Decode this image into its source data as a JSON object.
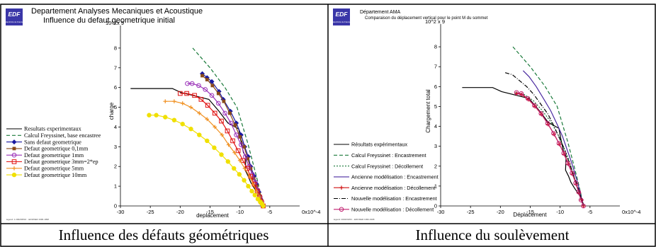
{
  "captions": [
    "Influence des défauts géométriques",
    "Influence du soulèvement"
  ],
  "chart_data": [
    {
      "type": "line",
      "logo": "EDF",
      "logo_sub": "Electricité de France",
      "header": "Departement Analyses Mecaniques et Acoustique",
      "title": "Influence du defaut geometrique initial",
      "xlabel": "deplacement",
      "ylabel": "charge",
      "x_scale_label": "0x10^-4",
      "y_scale_label": "10^2x 9",
      "xlim": [
        -30,
        0
      ],
      "ylim": [
        0,
        9
      ],
      "x_ticks": [
        -30,
        -25,
        -20,
        -15,
        -10,
        -5
      ],
      "y_ticks": [
        0,
        1,
        2,
        3,
        4,
        5,
        6,
        7,
        8
      ],
      "footer": "legend: 1 2002/08/16 ...EDF/DER 1996-1998",
      "series": [
        {
          "name": "Resultats experimentaux",
          "color": "#000000",
          "dash": "",
          "marker": "none",
          "x": [
            -28.3,
            -26.4,
            -21.3,
            -19.9,
            -15.2,
            -13.5,
            -12,
            -10.2,
            -9.9,
            -9.4,
            -9,
            -9.1,
            -8.6,
            -8.2,
            -7.6,
            -6.8,
            -6.3,
            -6
          ],
          "y": [
            5.95,
            5.95,
            5.95,
            5.75,
            5.4,
            4.8,
            4.2,
            3.9,
            3.4,
            2.7,
            2.5,
            1.8,
            1.5,
            1.2,
            0.9,
            0.55,
            0.25,
            0
          ]
        },
        {
          "name": "Calcul Freyssinet, base encastree",
          "color": "#1a7a3a",
          "dash": "5,3",
          "marker": "none",
          "x": [
            -17.9,
            -15,
            -12.5,
            -10.5,
            -9.5,
            -8.7,
            -8.1,
            -7.5,
            -7,
            -6.6,
            -6.3,
            -6.1
          ],
          "y": [
            8,
            7,
            6,
            5,
            4,
            3.2,
            2.5,
            1.8,
            1.2,
            0.7,
            0.3,
            0
          ]
        },
        {
          "name": "Sans defaut geometrique",
          "color": "#1a1aa0",
          "dash": "",
          "marker": "diamond",
          "x": [
            -16.3,
            -15.5,
            -14.7,
            -13.5,
            -12.8,
            -11.6,
            -10.6,
            -9.8,
            -9.2,
            -8.6,
            -8.2,
            -7.6,
            -7.2,
            -6.8,
            -6.5,
            -6.2
          ],
          "y": [
            6.7,
            6.5,
            6.3,
            5.8,
            5.4,
            4.8,
            4.2,
            3.6,
            3.0,
            2.5,
            2.0,
            1.5,
            1.1,
            0.7,
            0.35,
            0
          ]
        },
        {
          "name": "Defaut geometrique 0,1mm",
          "color": "#8a4a1a",
          "dash": "",
          "marker": "square",
          "x": [
            -16.3,
            -15.5,
            -14.6,
            -13.6,
            -12.7,
            -11.7,
            -10.8,
            -10,
            -9.3,
            -8.7,
            -8.2,
            -7.7,
            -7.2,
            -6.8,
            -6.5,
            -6.2
          ],
          "y": [
            6.6,
            6.4,
            6.1,
            5.7,
            5.3,
            4.7,
            4.1,
            3.5,
            3.0,
            2.4,
            1.9,
            1.4,
            1.0,
            0.6,
            0.3,
            0
          ]
        },
        {
          "name": "Defaut geometrique 1mm",
          "color": "#9a30b8",
          "dash": "",
          "marker": "circle",
          "x": [
            -18.8,
            -18,
            -16.9,
            -15.8,
            -14.7,
            -13.6,
            -12.5,
            -11.5,
            -10.6,
            -9.8,
            -9.1,
            -8.5,
            -7.9,
            -7.4,
            -7,
            -6.6,
            -6.3,
            -6.1
          ],
          "y": [
            6.2,
            6.2,
            6.1,
            5.9,
            5.6,
            5.2,
            4.7,
            4.2,
            3.6,
            3.1,
            2.5,
            2.0,
            1.6,
            1.2,
            0.8,
            0.45,
            0.2,
            0
          ]
        },
        {
          "name": "Defaut geometrique 3mm=2*ep",
          "color": "#e01010",
          "dash": "",
          "marker": "square-open",
          "x": [
            -20,
            -18.9,
            -17.6,
            -16.5,
            -15.4,
            -14.2,
            -13.1,
            -12.1,
            -11.2,
            -10.3,
            -9.5,
            -8.8,
            -8.2,
            -7.6,
            -7.1,
            -6.7,
            -6.4,
            -6.1
          ],
          "y": [
            5.7,
            5.7,
            5.6,
            5.4,
            5.1,
            4.7,
            4.3,
            3.8,
            3.3,
            2.8,
            2.3,
            1.9,
            1.5,
            1.1,
            0.75,
            0.45,
            0.2,
            0
          ]
        },
        {
          "name": "Defaut geometrique 5mm",
          "color": "#f09020",
          "dash": "",
          "marker": "plus",
          "x": [
            -22.5,
            -21,
            -19.6,
            -18.2,
            -16.8,
            -15.5,
            -14.2,
            -13,
            -11.9,
            -10.9,
            -10,
            -9.2,
            -8.4,
            -7.8,
            -7.2,
            -6.7,
            -6.3,
            -6.1
          ],
          "y": [
            5.3,
            5.3,
            5.2,
            5.0,
            4.7,
            4.4,
            4.0,
            3.6,
            3.1,
            2.7,
            2.3,
            1.9,
            1.5,
            1.1,
            0.75,
            0.45,
            0.2,
            0
          ]
        },
        {
          "name": "Defaut geometrique 10mm",
          "color": "#f0e000",
          "dash": "",
          "marker": "circle-fill",
          "x": [
            -25.2,
            -24,
            -22.5,
            -21,
            -19.6,
            -18.2,
            -16.8,
            -15.5,
            -14.3,
            -13.1,
            -12,
            -11,
            -10.1,
            -9.3,
            -8.6,
            -8,
            -7.5,
            -7,
            -6.6,
            -6.3,
            -6.1
          ],
          "y": [
            4.6,
            4.6,
            4.5,
            4.35,
            4.15,
            3.9,
            3.6,
            3.3,
            2.95,
            2.6,
            2.25,
            1.9,
            1.6,
            1.3,
            1.0,
            0.75,
            0.55,
            0.35,
            0.2,
            0.1,
            0
          ]
        }
      ]
    },
    {
      "type": "line",
      "logo": "EDF",
      "logo_sub": "Electricité de France",
      "header": "Département AMA",
      "title": "Comparaison du déplacement vertical pour le point M du sommet",
      "xlabel": "Déplacement",
      "ylabel": "Chargement total",
      "x_scale_label": "0x10^-4",
      "y_scale_label": "10^2 x 9",
      "xlim": [
        -30,
        0
      ],
      "ylim": [
        0,
        9
      ],
      "x_ticks": [
        -30,
        -25,
        -20,
        -15,
        -10,
        -5
      ],
      "y_ticks": [
        0,
        1,
        2,
        3,
        4,
        5,
        6,
        7,
        8
      ],
      "footer": "legend: 2002/03/03 ...EDF/DER 1996-1998",
      "series": [
        {
          "name": "Résultats expérimentaux",
          "color": "#000000",
          "dash": "",
          "marker": "none",
          "x": [
            -26.4,
            -24.2,
            -21.3,
            -19.8,
            -15.2,
            -13.5,
            -12,
            -10.2,
            -9.9,
            -9.4,
            -9,
            -9.1,
            -8.6,
            -8.2,
            -7.6,
            -6.8,
            -6.3,
            -6
          ],
          "y": [
            5.95,
            5.95,
            5.95,
            5.75,
            5.4,
            4.8,
            4.2,
            3.9,
            3.4,
            2.7,
            2.5,
            1.8,
            1.5,
            1.2,
            0.9,
            0.55,
            0.25,
            0
          ]
        },
        {
          "name": "Calcul Freyssinet : Encastrement",
          "color": "#1a7a3a",
          "dash": "5,3",
          "marker": "none",
          "x": [
            -17.9,
            -15,
            -12.5,
            -10.5,
            -9.5,
            -8.7,
            -8.1,
            -7.5,
            -7,
            -6.6,
            -6.3,
            -6.1
          ],
          "y": [
            8,
            7,
            6,
            5,
            4,
            3.2,
            2.5,
            1.8,
            1.2,
            0.7,
            0.3,
            0
          ]
        },
        {
          "name": "Calcul Freyssinet : Décollement",
          "color": "#1a7a3a",
          "dash": "2,2",
          "marker": "none",
          "x": [
            -17.5,
            -16,
            -14.5,
            -13,
            -11.5,
            -10.2,
            -9.2,
            -8.4,
            -7.7,
            -7.1,
            -6.6,
            -6.2
          ],
          "y": [
            5.7,
            5.6,
            5.3,
            4.8,
            4.2,
            3.5,
            2.8,
            2.2,
            1.5,
            0.9,
            0.4,
            0
          ]
        },
        {
          "name": "Ancienne modélisation : Encastrement",
          "color": "#4a2aa0",
          "dash": "",
          "marker": "none",
          "x": [
            -16.2,
            -15.2,
            -14,
            -12.8,
            -11.6,
            -10.5,
            -9.6,
            -8.8,
            -8.1,
            -7.5,
            -7,
            -6.6,
            -6.3,
            -6.1
          ],
          "y": [
            6.8,
            6.5,
            6.0,
            5.4,
            4.8,
            4.1,
            3.5,
            2.8,
            2.2,
            1.6,
            1.1,
            0.6,
            0.25,
            0
          ]
        },
        {
          "name": "Ancienne modélisation : Décollement",
          "color": "#d01010",
          "dash": "",
          "marker": "plus",
          "x": [
            -17.3,
            -16.4,
            -15.3,
            -14.2,
            -13.1,
            -12,
            -11,
            -10.1,
            -9.3,
            -8.6,
            -7.9,
            -7.3,
            -6.8,
            -6.4,
            -6.1
          ],
          "y": [
            5.65,
            5.6,
            5.35,
            5.0,
            4.6,
            4.1,
            3.6,
            3.1,
            2.6,
            2.1,
            1.6,
            1.1,
            0.65,
            0.3,
            0
          ]
        },
        {
          "name": "Nouvelle modélisation : Encastrement",
          "color": "#000000",
          "dash": "6,2,1,2",
          "marker": "none",
          "x": [
            -19.2,
            -18,
            -16.8,
            -15.6,
            -14.4,
            -13.2,
            -12,
            -11,
            -10.1,
            -9.2,
            -8.5,
            -7.8,
            -7.2,
            -6.7,
            -6.3,
            -6.1
          ],
          "y": [
            6.7,
            6.6,
            6.3,
            6.0,
            5.6,
            5.1,
            4.6,
            4.0,
            3.4,
            2.8,
            2.2,
            1.6,
            1.1,
            0.6,
            0.25,
            0
          ]
        },
        {
          "name": "Nouvelle modélisation : Décollement",
          "color": "#c02070",
          "dash": "",
          "marker": "circle",
          "x": [
            -17.3,
            -16.5,
            -15.4,
            -14.3,
            -13.2,
            -12.1,
            -11.1,
            -10.2,
            -9.4,
            -8.7,
            -8,
            -7.4,
            -6.9,
            -6.5,
            -6.1
          ],
          "y": [
            5.7,
            5.65,
            5.4,
            5.05,
            4.65,
            4.15,
            3.65,
            3.15,
            2.65,
            2.15,
            1.65,
            1.15,
            0.7,
            0.3,
            0
          ]
        }
      ]
    }
  ]
}
